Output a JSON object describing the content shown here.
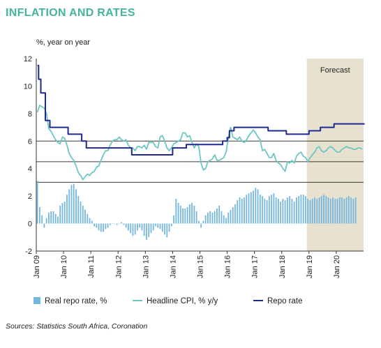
{
  "chart_data": {
    "type": "bar",
    "title": "INFLATION AND RATES",
    "ylabel": "%, year on year",
    "ylim": [
      -2,
      12
    ],
    "yticks": [
      -2,
      0,
      2,
      4,
      6,
      8,
      10,
      12
    ],
    "x_range": [
      "2009-01",
      "2020-12"
    ],
    "xticks": [
      "Jan 09",
      "Jan 10",
      "Jan 11",
      "Jan 12",
      "Jan 13",
      "Jan 14",
      "Jan 15",
      "Jan 16",
      "Jan 17",
      "Jan 18",
      "Jan 19",
      "Jan 20"
    ],
    "reference_lines": [
      6,
      4.5,
      3
    ],
    "forecast": {
      "label": "Forecast",
      "start": "2018-12",
      "end": "2020-12"
    },
    "legend_position": "bottom",
    "colors": {
      "title": "#45b49c",
      "bars": "#74b7de",
      "cpi": "#6cc7c3",
      "repo": "#1f2a8f",
      "forecast_band": "#e7e2d0",
      "reference": "#3a3a3a",
      "axis": "#333333"
    },
    "series": [
      {
        "name": "Real repo rate, %",
        "kind": "bar",
        "values": [
          3.1,
          1.2,
          0.6,
          -0.3,
          0.4,
          0.8,
          0.9,
          0.9,
          0.7,
          0.5,
          1.3,
          1.5,
          1.6,
          2.1,
          2.5,
          2.8,
          2.9,
          2.5,
          2.0,
          1.6,
          1.3,
          1.0,
          0.7,
          0.4,
          0.2,
          -0.2,
          -0.3,
          -0.5,
          -0.6,
          -0.6,
          -0.4,
          -0.3,
          -0.1,
          0.0,
          0.0,
          -0.1,
          0.0,
          0.1,
          -0.1,
          -0.3,
          -0.5,
          -0.7,
          -0.9,
          -0.8,
          -0.5,
          -0.3,
          -0.5,
          -0.9,
          -1.2,
          -1.0,
          -0.7,
          -0.5,
          -0.2,
          -0.3,
          -0.4,
          -0.6,
          -0.8,
          -1.0,
          -0.6,
          -0.2,
          0.6,
          1.8,
          1.5,
          1.3,
          1.1,
          1.1,
          1.2,
          1.4,
          1.5,
          1.3,
          0.9,
          0.2,
          -0.3,
          0.2,
          0.6,
          0.8,
          0.9,
          0.8,
          0.9,
          1.1,
          1.3,
          0.9,
          0.6,
          0.4,
          0.8,
          1.0,
          1.2,
          1.4,
          1.7,
          1.9,
          1.8,
          1.9,
          2.1,
          2.2,
          2.3,
          2.4,
          2.6,
          2.5,
          2.1,
          2.0,
          1.8,
          1.7,
          2.0,
          2.1,
          2.2,
          1.9,
          1.8,
          1.6,
          1.8,
          1.7,
          1.9,
          2.0,
          1.8,
          1.6,
          1.9,
          2.0,
          2.1,
          2.1,
          2.0,
          1.8,
          1.7,
          1.8,
          1.9,
          1.8,
          1.9,
          2.0,
          2.1,
          2.0,
          1.9,
          1.8,
          1.9,
          1.8,
          1.8,
          1.9,
          1.9,
          1.8,
          1.9,
          2.0,
          1.9,
          1.8,
          1.9
        ]
      },
      {
        "name": "Headline CPI, % y/y",
        "kind": "line",
        "values": [
          8.1,
          8.6,
          8.5,
          8.4,
          8.0,
          6.9,
          6.7,
          6.4,
          6.1,
          5.9,
          5.8,
          6.3,
          6.2,
          5.7,
          5.1,
          4.8,
          4.6,
          4.2,
          3.7,
          3.5,
          3.2,
          3.4,
          3.6,
          3.5,
          3.7,
          3.8,
          4.1,
          4.2,
          4.6,
          5.0,
          5.3,
          5.3,
          5.7,
          6.0,
          6.1,
          6.1,
          6.3,
          6.1,
          6.0,
          6.1,
          5.7,
          5.5,
          5.5,
          5.3,
          5.6,
          5.6,
          5.5,
          5.7,
          5.4,
          5.9,
          5.9,
          5.9,
          5.6,
          5.5,
          6.3,
          6.4,
          6.0,
          5.5,
          5.3,
          5.5,
          5.8,
          5.9,
          6.0,
          6.1,
          6.6,
          6.6,
          6.3,
          6.4,
          5.9,
          5.5,
          5.8,
          5.6,
          4.4,
          3.9,
          4.0,
          4.5,
          4.6,
          4.7,
          5.0,
          4.6,
          4.6,
          4.7,
          4.8,
          5.2,
          6.2,
          7.0,
          6.3,
          6.2,
          6.1,
          6.3,
          6.0,
          5.9,
          6.1,
          6.4,
          6.6,
          6.8,
          6.6,
          6.3,
          6.1,
          5.3,
          5.4,
          5.1,
          4.8,
          4.8,
          5.1,
          4.6,
          4.4,
          4.3,
          4.0,
          3.8,
          4.5,
          4.4,
          4.6,
          4.4,
          4.9,
          5.1,
          5.2,
          4.9,
          4.8,
          4.5,
          4.8,
          5.0,
          5.2,
          5.5,
          5.6,
          5.3,
          5.2,
          5.3,
          5.5,
          5.6,
          5.5,
          5.3,
          5.2,
          5.2,
          5.4,
          5.5,
          5.6,
          5.5,
          5.5,
          5.4,
          5.4,
          5.5,
          5.5,
          5.4
        ]
      },
      {
        "name": "Repo rate",
        "kind": "line",
        "values": [
          11.5,
          10.5,
          9.5,
          9.5,
          7.5,
          7.5,
          7.0,
          7.0,
          7.0,
          7.0,
          7.0,
          7.0,
          7.0,
          7.0,
          6.5,
          6.5,
          6.5,
          6.5,
          6.5,
          6.5,
          6.0,
          6.0,
          5.5,
          5.5,
          5.5,
          5.5,
          5.5,
          5.5,
          5.5,
          5.5,
          5.5,
          5.5,
          5.5,
          5.5,
          5.5,
          5.5,
          5.5,
          5.5,
          5.5,
          5.5,
          5.5,
          5.5,
          5.0,
          5.0,
          5.0,
          5.0,
          5.0,
          5.0,
          5.0,
          5.0,
          5.0,
          5.0,
          5.0,
          5.0,
          5.0,
          5.0,
          5.0,
          5.0,
          5.0,
          5.0,
          5.5,
          5.5,
          5.5,
          5.5,
          5.5,
          5.5,
          5.75,
          5.75,
          5.75,
          5.75,
          5.75,
          5.75,
          5.75,
          5.75,
          5.75,
          5.75,
          5.75,
          5.75,
          5.75,
          5.75,
          5.75,
          5.75,
          6.0,
          6.0,
          6.25,
          6.75,
          6.75,
          7.0,
          7.0,
          7.0,
          7.0,
          7.0,
          7.0,
          7.0,
          7.0,
          7.0,
          7.0,
          7.0,
          7.0,
          7.0,
          7.0,
          7.0,
          6.75,
          6.75,
          6.75,
          6.75,
          6.75,
          6.75,
          6.75,
          6.75,
          6.5,
          6.5,
          6.5,
          6.5,
          6.5,
          6.5,
          6.5,
          6.5,
          6.5,
          6.5,
          6.75,
          6.75,
          6.75,
          6.75,
          6.75,
          7.0,
          7.0,
          7.0,
          7.0,
          7.0,
          7.0,
          7.25,
          7.25,
          7.25,
          7.25,
          7.25,
          7.25,
          7.25,
          7.25,
          7.25,
          7.25,
          7.25,
          7.25,
          7.25,
          7.25
        ]
      }
    ]
  },
  "source_text": "Sources: Statistics South Africa, Coronation"
}
